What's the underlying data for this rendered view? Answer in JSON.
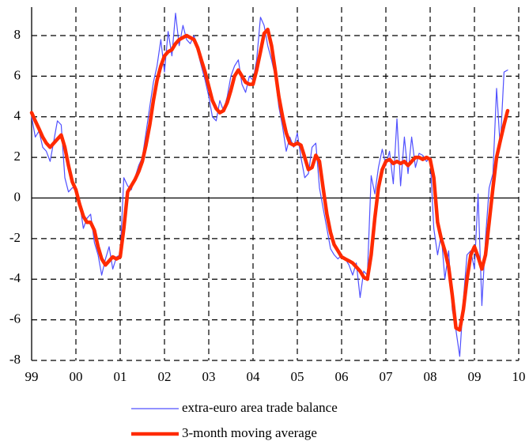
{
  "chart_data": {
    "type": "line",
    "x": [
      1999.0,
      1999.083,
      1999.167,
      1999.25,
      1999.333,
      1999.417,
      1999.5,
      1999.583,
      1999.667,
      1999.75,
      1999.833,
      1999.917,
      2000.0,
      2000.083,
      2000.167,
      2000.25,
      2000.333,
      2000.417,
      2000.5,
      2000.583,
      2000.667,
      2000.75,
      2000.833,
      2000.917,
      2001.0,
      2001.083,
      2001.167,
      2001.25,
      2001.333,
      2001.417,
      2001.5,
      2001.583,
      2001.667,
      2001.75,
      2001.833,
      2001.917,
      2002.0,
      2002.083,
      2002.167,
      2002.25,
      2002.333,
      2002.417,
      2002.5,
      2002.583,
      2002.667,
      2002.75,
      2002.833,
      2002.917,
      2003.0,
      2003.083,
      2003.167,
      2003.25,
      2003.333,
      2003.417,
      2003.5,
      2003.583,
      2003.667,
      2003.75,
      2003.833,
      2003.917,
      2004.0,
      2004.083,
      2004.167,
      2004.25,
      2004.333,
      2004.417,
      2004.5,
      2004.583,
      2004.667,
      2004.75,
      2004.833,
      2004.917,
      2005.0,
      2005.083,
      2005.167,
      2005.25,
      2005.333,
      2005.417,
      2005.5,
      2005.583,
      2005.667,
      2005.75,
      2005.833,
      2005.917,
      2006.0,
      2006.083,
      2006.167,
      2006.25,
      2006.333,
      2006.417,
      2006.5,
      2006.583,
      2006.667,
      2006.75,
      2006.833,
      2006.917,
      2007.0,
      2007.083,
      2007.167,
      2007.25,
      2007.333,
      2007.417,
      2007.5,
      2007.583,
      2007.667,
      2007.75,
      2007.833,
      2007.917,
      2008.0,
      2008.083,
      2008.167,
      2008.25,
      2008.333,
      2008.417,
      2008.5,
      2008.583,
      2008.667,
      2008.75,
      2008.833,
      2008.917,
      2009.0,
      2009.083,
      2009.167,
      2009.25,
      2009.333,
      2009.417,
      2009.5,
      2009.583,
      2009.667,
      2009.75
    ],
    "series": [
      {
        "name": "extra-euro area trade balance",
        "color": "#5050ff",
        "width": 1.2,
        "values": [
          4.0,
          3.0,
          3.3,
          2.5,
          2.3,
          1.8,
          2.8,
          3.8,
          3.6,
          1.0,
          0.3,
          0.5,
          0.5,
          -0.2,
          -1.5,
          -1.0,
          -0.8,
          -2.2,
          -2.8,
          -3.8,
          -3.0,
          -2.4,
          -3.5,
          -2.9,
          -2.8,
          1.0,
          0.6,
          0.4,
          1.0,
          1.6,
          2.0,
          3.2,
          4.5,
          5.7,
          6.5,
          7.8,
          6.2,
          8.2,
          7.0,
          9.1,
          7.5,
          8.5,
          7.8,
          7.6,
          8.0,
          7.2,
          6.5,
          5.8,
          5.0,
          4.0,
          3.8,
          4.8,
          4.3,
          5.0,
          6.0,
          6.5,
          6.8,
          5.6,
          5.2,
          6.0,
          5.8,
          6.8,
          8.9,
          8.5,
          7.5,
          6.8,
          6.0,
          4.5,
          3.5,
          2.3,
          3.0,
          2.5,
          3.2,
          2.0,
          1.0,
          1.2,
          2.5,
          2.7,
          0.5,
          -0.5,
          -1.5,
          -2.5,
          -2.8,
          -3.0,
          -2.8,
          -3.0,
          -3.3,
          -3.8,
          -3.2,
          -4.9,
          -3.6,
          -3.8,
          1.1,
          0.2,
          1.5,
          2.4,
          1.6,
          2.3,
          0.7,
          3.9,
          0.6,
          3.0,
          1.2,
          3.0,
          1.5,
          2.2,
          2.1,
          1.8,
          2.0,
          -1.5,
          -2.8,
          -1.8,
          -4.0,
          -2.6,
          -5.5,
          -6.5,
          -7.8,
          -5.0,
          -2.8,
          -2.6,
          -3.5,
          0.2,
          -5.3,
          -2.0,
          0.5,
          1.2,
          5.4,
          2.5,
          6.2,
          6.3
        ]
      },
      {
        "name": "3-month moving average",
        "color": "#ff2a00",
        "width": 4.5,
        "values": [
          4.2,
          3.8,
          3.4,
          3.0,
          2.7,
          2.5,
          2.7,
          2.9,
          3.1,
          2.5,
          1.6,
          0.8,
          0.4,
          -0.3,
          -0.9,
          -1.2,
          -1.2,
          -1.6,
          -2.4,
          -3.0,
          -3.3,
          -3.1,
          -2.9,
          -3.0,
          -2.9,
          -1.5,
          0.3,
          0.6,
          0.9,
          1.3,
          1.8,
          2.6,
          3.6,
          4.8,
          5.8,
          6.5,
          7.0,
          7.2,
          7.3,
          7.6,
          7.8,
          7.9,
          8.0,
          7.9,
          7.8,
          7.4,
          6.8,
          6.2,
          5.5,
          4.8,
          4.4,
          4.2,
          4.3,
          4.7,
          5.3,
          6.0,
          6.3,
          6.0,
          5.7,
          5.6,
          5.6,
          6.3,
          7.2,
          8.1,
          8.3,
          7.5,
          6.3,
          5.0,
          4.0,
          3.2,
          2.7,
          2.6,
          2.7,
          2.6,
          2.0,
          1.4,
          1.5,
          2.1,
          1.8,
          0.5,
          -0.8,
          -1.7,
          -2.3,
          -2.6,
          -2.9,
          -3.0,
          -3.1,
          -3.2,
          -3.4,
          -3.6,
          -3.9,
          -4.0,
          -2.8,
          -1.0,
          0.5,
          1.4,
          1.8,
          1.9,
          1.7,
          1.8,
          1.7,
          1.8,
          1.6,
          1.8,
          2.0,
          2.0,
          1.9,
          2.0,
          1.9,
          1.0,
          -1.2,
          -2.0,
          -2.6,
          -3.4,
          -4.8,
          -6.4,
          -6.5,
          -5.5,
          -4.0,
          -2.8,
          -2.4,
          -2.9,
          -3.5,
          -2.8,
          -1.2,
          0.5,
          2.0,
          2.8,
          3.6,
          4.3
        ]
      }
    ],
    "xlim": [
      1999,
      2010
    ],
    "xticks": [
      {
        "value": 1999,
        "label": "99"
      },
      {
        "value": 2000,
        "label": "00"
      },
      {
        "value": 2001,
        "label": "01"
      },
      {
        "value": 2002,
        "label": "02"
      },
      {
        "value": 2003,
        "label": "03"
      },
      {
        "value": 2004,
        "label": "04"
      },
      {
        "value": 2005,
        "label": "05"
      },
      {
        "value": 2006,
        "label": "06"
      },
      {
        "value": 2007,
        "label": "07"
      },
      {
        "value": 2008,
        "label": "08"
      },
      {
        "value": 2009,
        "label": "09"
      },
      {
        "value": 2010,
        "label": "10"
      }
    ],
    "ylim": [
      -8,
      9.4
    ],
    "yticks": [
      -8,
      -6,
      -4,
      -2,
      0,
      2,
      4,
      6,
      8
    ],
    "grid": true
  }
}
